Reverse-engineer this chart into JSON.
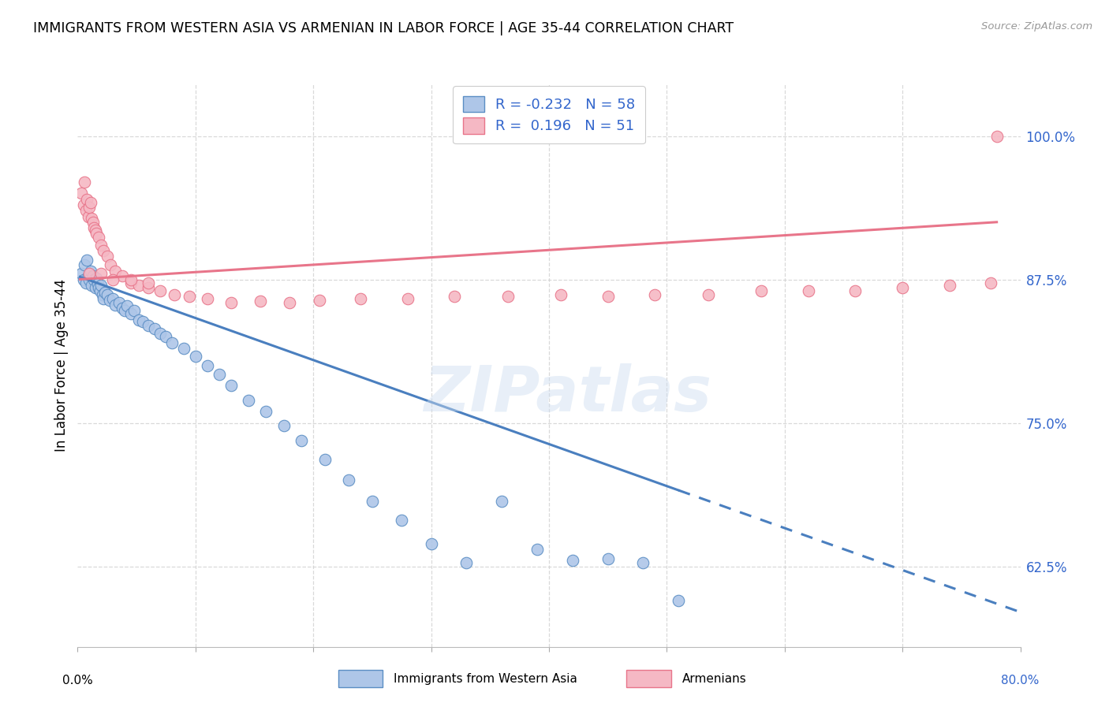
{
  "title": "IMMIGRANTS FROM WESTERN ASIA VS ARMENIAN IN LABOR FORCE | AGE 35-44 CORRELATION CHART",
  "source": "Source: ZipAtlas.com",
  "ylabel": "In Labor Force | Age 35-44",
  "y_ticks": [
    0.625,
    0.75,
    0.875,
    1.0
  ],
  "y_tick_labels": [
    "62.5%",
    "75.0%",
    "87.5%",
    "100.0%"
  ],
  "xlim": [
    0.0,
    0.8
  ],
  "ylim": [
    0.555,
    1.045
  ],
  "r_blue": -0.232,
  "n_blue": 58,
  "r_pink": 0.196,
  "n_pink": 51,
  "blue_color": "#aec6e8",
  "pink_color": "#f5b8c4",
  "blue_edge": "#5b8ec4",
  "pink_edge": "#e8758a",
  "line_blue": "#4a7fbf",
  "line_pink": "#e8758a",
  "watermark": "ZIPatlas",
  "blue_scatter_x": [
    0.003,
    0.005,
    0.006,
    0.007,
    0.008,
    0.009,
    0.01,
    0.011,
    0.012,
    0.013,
    0.014,
    0.015,
    0.016,
    0.017,
    0.018,
    0.019,
    0.02,
    0.021,
    0.022,
    0.023,
    0.025,
    0.027,
    0.03,
    0.032,
    0.035,
    0.038,
    0.04,
    0.042,
    0.045,
    0.048,
    0.052,
    0.055,
    0.06,
    0.065,
    0.07,
    0.075,
    0.08,
    0.09,
    0.1,
    0.11,
    0.12,
    0.13,
    0.145,
    0.16,
    0.175,
    0.19,
    0.21,
    0.23,
    0.25,
    0.275,
    0.3,
    0.33,
    0.36,
    0.39,
    0.42,
    0.45,
    0.48,
    0.51
  ],
  "blue_scatter_y": [
    0.88,
    0.875,
    0.888,
    0.872,
    0.892,
    0.878,
    0.875,
    0.882,
    0.87,
    0.878,
    0.875,
    0.868,
    0.876,
    0.871,
    0.868,
    0.865,
    0.87,
    0.862,
    0.858,
    0.864,
    0.862,
    0.857,
    0.858,
    0.853,
    0.855,
    0.85,
    0.848,
    0.852,
    0.845,
    0.848,
    0.84,
    0.838,
    0.835,
    0.832,
    0.828,
    0.825,
    0.82,
    0.815,
    0.808,
    0.8,
    0.792,
    0.783,
    0.77,
    0.76,
    0.748,
    0.735,
    0.718,
    0.7,
    0.682,
    0.665,
    0.645,
    0.628,
    0.682,
    0.64,
    0.63,
    0.632,
    0.628,
    0.595
  ],
  "pink_scatter_x": [
    0.003,
    0.005,
    0.006,
    0.007,
    0.008,
    0.009,
    0.01,
    0.011,
    0.012,
    0.013,
    0.014,
    0.015,
    0.016,
    0.018,
    0.02,
    0.022,
    0.025,
    0.028,
    0.032,
    0.038,
    0.045,
    0.052,
    0.06,
    0.07,
    0.082,
    0.095,
    0.11,
    0.13,
    0.155,
    0.18,
    0.205,
    0.24,
    0.28,
    0.32,
    0.365,
    0.41,
    0.45,
    0.49,
    0.535,
    0.58,
    0.62,
    0.66,
    0.7,
    0.74,
    0.775,
    0.01,
    0.02,
    0.03,
    0.045,
    0.06,
    0.78
  ],
  "pink_scatter_y": [
    0.95,
    0.94,
    0.96,
    0.935,
    0.945,
    0.93,
    0.938,
    0.942,
    0.928,
    0.925,
    0.92,
    0.918,
    0.915,
    0.912,
    0.905,
    0.9,
    0.895,
    0.888,
    0.882,
    0.878,
    0.872,
    0.87,
    0.868,
    0.865,
    0.862,
    0.86,
    0.858,
    0.855,
    0.856,
    0.855,
    0.857,
    0.858,
    0.858,
    0.86,
    0.86,
    0.862,
    0.86,
    0.862,
    0.862,
    0.865,
    0.865,
    0.865,
    0.868,
    0.87,
    0.872,
    0.88,
    0.88,
    0.875,
    0.875,
    0.872,
    1.0
  ]
}
